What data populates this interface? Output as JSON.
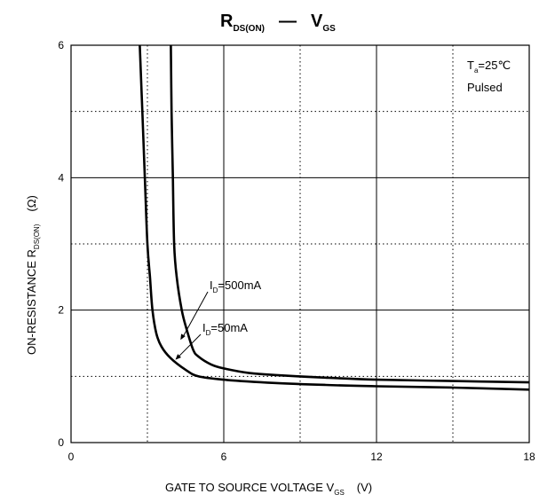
{
  "chart_data": {
    "type": "line",
    "title": {
      "main": "R",
      "main_sub": "DS(ON)",
      "dash": "—",
      "right": "V",
      "right_sub": "GS"
    },
    "xlabel": {
      "text": "GATE TO SOURCE VOLTAGE   V",
      "sub": "GS",
      "unit": "(V)"
    },
    "ylabel": {
      "text": "ON-RESISTANCE   R",
      "sub": "DS(ON)",
      "unit": "(Ω)"
    },
    "xlim": [
      0,
      18
    ],
    "ylim": [
      0,
      6
    ],
    "x_ticks": [
      {
        "v": 0,
        "label": "0"
      },
      {
        "v": 6,
        "label": "6"
      },
      {
        "v": 12,
        "label": "12"
      },
      {
        "v": 18,
        "label": "18"
      }
    ],
    "y_ticks": [
      {
        "v": 0,
        "label": "0"
      },
      {
        "v": 2,
        "label": "2"
      },
      {
        "v": 4,
        "label": "4"
      },
      {
        "v": 6,
        "label": "6"
      }
    ],
    "x_grid_solid": [
      6,
      12
    ],
    "x_grid_dotted": [
      3,
      9,
      15
    ],
    "y_grid_solid": [
      2,
      4
    ],
    "y_grid_dotted": [
      1,
      3,
      5
    ],
    "conditions": {
      "ta_prefix": "T",
      "ta_sub": "a",
      "ta_value": "=25℃",
      "mode": "Pulsed"
    },
    "series": [
      {
        "name_prefix": "I",
        "name_sub": "D",
        "name_value": "=500mA",
        "points": [
          [
            3.92,
            6.0
          ],
          [
            3.95,
            5.0
          ],
          [
            4.0,
            4.0
          ],
          [
            4.05,
            3.0
          ],
          [
            4.15,
            2.5
          ],
          [
            4.35,
            2.0
          ],
          [
            4.55,
            1.7
          ],
          [
            4.8,
            1.4
          ],
          [
            5.0,
            1.3
          ],
          [
            5.5,
            1.18
          ],
          [
            6.0,
            1.12
          ],
          [
            7.0,
            1.05
          ],
          [
            8.0,
            1.02
          ],
          [
            10.0,
            0.98
          ],
          [
            12.0,
            0.95
          ],
          [
            15.0,
            0.93
          ],
          [
            18.0,
            0.91
          ]
        ],
        "label_anchor": [
          4.3,
          1.55
        ]
      },
      {
        "name_prefix": "I",
        "name_sub": "D",
        "name_value": "=50mA",
        "points": [
          [
            2.7,
            6.0
          ],
          [
            2.8,
            5.0
          ],
          [
            2.9,
            4.0
          ],
          [
            3.0,
            3.0
          ],
          [
            3.1,
            2.5
          ],
          [
            3.2,
            2.0
          ],
          [
            3.35,
            1.65
          ],
          [
            3.55,
            1.45
          ],
          [
            3.9,
            1.28
          ],
          [
            4.5,
            1.1
          ],
          [
            5.0,
            1.0
          ],
          [
            6.0,
            0.95
          ],
          [
            8.0,
            0.9
          ],
          [
            10.0,
            0.87
          ],
          [
            12.0,
            0.85
          ],
          [
            15.0,
            0.83
          ],
          [
            18.0,
            0.8
          ]
        ],
        "label_anchor": [
          4.1,
          1.25
        ]
      }
    ]
  }
}
